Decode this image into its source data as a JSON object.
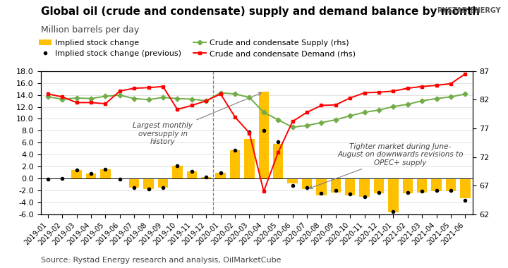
{
  "chart_data": {
    "type": "bar",
    "title": "Global oil (crude and condensate) supply and demand balance by month",
    "subtitle": "Million barrels per day",
    "source": "Source: Rystad Energy research and analysis, OilMarketCube",
    "logo": "RYSTAD ENERGY",
    "categories": [
      "2019-01",
      "2019-02",
      "2019-03",
      "2019-04",
      "2019-05",
      "2019-06",
      "2019-07",
      "2019-08",
      "2019-09",
      "2019-10",
      "2019-11",
      "2019-12",
      "2020-01",
      "2020-02",
      "2020-03",
      "2020-04",
      "2020-05",
      "2020-06",
      "2020-07",
      "2020-08",
      "2020-09",
      "2020-10",
      "2020-11",
      "2020-12",
      "2021-01",
      "2021-02",
      "2021-03",
      "2021-04",
      "2021-05",
      "2021-06"
    ],
    "series": [
      {
        "name": "Implied stock change",
        "type": "bar",
        "color": "#FFC000",
        "values": [
          -0.1,
          0.05,
          1.4,
          0.8,
          1.5,
          -0.1,
          -1.5,
          -1.8,
          -1.5,
          2.2,
          1.2,
          0.3,
          1.0,
          4.8,
          6.6,
          14.5,
          5.8,
          -0.8,
          -1.8,
          -2.8,
          -2.3,
          -2.8,
          -3.1,
          -2.5,
          -5.7,
          -2.5,
          -2.3,
          -2.1,
          -2.1,
          -3.3
        ]
      },
      {
        "name": "Implied stock change (previous)",
        "type": "scatter",
        "color": "#000000",
        "marker": "point",
        "values": [
          -0.1,
          0.05,
          1.4,
          0.8,
          1.5,
          -0.1,
          -1.5,
          -1.8,
          -1.5,
          2.2,
          1.2,
          0.3,
          1.0,
          4.8,
          7.8,
          8.0,
          6.2,
          -1.2,
          -1.5,
          -2.5,
          -2.0,
          -2.6,
          -3.0,
          -2.3,
          -5.5,
          -2.3,
          -2.1,
          -2.0,
          -2.0,
          -3.6
        ]
      },
      {
        "name": "Crude and condensate Supply (rhs)",
        "type": "line",
        "color": "#70AD47",
        "marker": "diamond",
        "axis": "y2",
        "values": [
          82.5,
          82.1,
          82.3,
          82.2,
          82.6,
          82.8,
          82.2,
          82.0,
          82.4,
          82.2,
          82.1,
          81.8,
          83.2,
          83.0,
          82.4,
          79.8,
          78.5,
          77.2,
          77.5,
          78.0,
          78.5,
          79.2,
          79.8,
          80.2,
          80.8,
          81.2,
          81.8,
          82.2,
          82.5,
          83.0
        ]
      },
      {
        "name": "Crude and condensate Demand (rhs)",
        "type": "line",
        "color": "#FF0000",
        "marker": "square",
        "axis": "y2",
        "values": [
          83.0,
          82.5,
          81.5,
          81.5,
          81.3,
          83.5,
          84.0,
          84.1,
          84.3,
          80.3,
          81.0,
          81.8,
          83.0,
          79.0,
          76.2,
          66.0,
          72.8,
          78.2,
          79.8,
          81.0,
          81.1,
          82.3,
          83.2,
          83.3,
          83.5,
          84.0,
          84.3,
          84.5,
          84.8,
          86.5
        ]
      }
    ],
    "ylim": [
      -6.0,
      18.0
    ],
    "yticks": [
      {
        "value": -6.0,
        "label": "-6.0"
      },
      {
        "value": -4.0,
        "label": "-4.0"
      },
      {
        "value": -2.0,
        "label": "-2.0"
      },
      {
        "value": 0.0,
        "label": "0.0"
      },
      {
        "value": 2.0,
        "label": "2.0"
      },
      {
        "value": 4.0,
        "label": "4.0"
      },
      {
        "value": 6.0,
        "label": "6.0"
      },
      {
        "value": 8.0,
        "label": "8.0"
      },
      {
        "value": 10.0,
        "label": "10.0"
      },
      {
        "value": 12.0,
        "label": "12.0"
      },
      {
        "value": 14.0,
        "label": "14.0"
      },
      {
        "value": 16.0,
        "label": "16.0"
      },
      {
        "value": 18.0,
        "label": "18.0"
      }
    ],
    "y2lim": [
      62,
      87
    ],
    "y2ticks": [
      62,
      67,
      72,
      77,
      82,
      87
    ],
    "grid": true,
    "legend": "upper left",
    "vline": "2020-01",
    "annotations": [
      {
        "text": "Largest monthly\noversupply in\nhistory",
        "x": "2020-04"
      },
      {
        "text": "Tighter market during June-\nAugust on downwards revisions to\nOPEC+ supply",
        "x": "2020-07"
      }
    ]
  }
}
